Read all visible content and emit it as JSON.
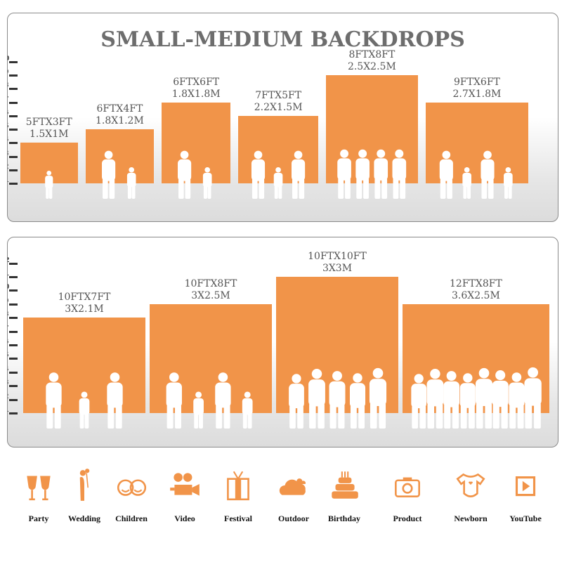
{
  "title": "SMALL-MEDIUM BACKDROPS",
  "accent_color": "#f19449",
  "panels": [
    {
      "ticks": [
        "1",
        "2",
        "3",
        "4",
        "5",
        "6",
        "7",
        "8",
        "9",
        "10"
      ],
      "backdrops": [
        {
          "ft": "5FTX3FT",
          "m": "1.5X1M",
          "width_ft": 5,
          "height_ft": 3,
          "people": 1
        },
        {
          "ft": "6FTX4FT",
          "m": "1.8X1.2M",
          "width_ft": 6,
          "height_ft": 4,
          "people": 2
        },
        {
          "ft": "6FTX6FT",
          "m": "1.8X1.8M",
          "width_ft": 6,
          "height_ft": 6,
          "people": 2
        },
        {
          "ft": "7FTX5FT",
          "m": "2.2X1.5M",
          "width_ft": 7,
          "height_ft": 5,
          "people": 3
        },
        {
          "ft": "8FTX8FT",
          "m": "2.5X2.5M",
          "width_ft": 8,
          "height_ft": 8,
          "people": 4
        },
        {
          "ft": "9FTX6FT",
          "m": "2.7X1.8M",
          "width_ft": 9,
          "height_ft": 6,
          "people": 4
        }
      ]
    },
    {
      "ticks": [
        "1",
        "2",
        "3",
        "4",
        "5",
        "6",
        "7",
        "8",
        "9",
        "10",
        "11",
        "12"
      ],
      "backdrops": [
        {
          "ft": "10FTX7FT",
          "m": "3X2.1M",
          "width_ft": 10,
          "height_ft": 7,
          "people": 3
        },
        {
          "ft": "10FTX8FT",
          "m": "3X2.5M",
          "width_ft": 10,
          "height_ft": 8,
          "people": 4
        },
        {
          "ft": "10FTX10FT",
          "m": "3X3M",
          "width_ft": 10,
          "height_ft": 10,
          "people": 5
        },
        {
          "ft": "12FTX8FT",
          "m": "3.6X2.5M",
          "width_ft": 12,
          "height_ft": 8,
          "people": 8
        }
      ]
    }
  ],
  "categories": [
    {
      "label": "Party",
      "icon": "wine-glasses-icon"
    },
    {
      "label": "Wedding",
      "icon": "wedding-couple-icon"
    },
    {
      "label": "Children",
      "icon": "children-faces-icon"
    },
    {
      "label": "Video",
      "icon": "video-camera-icon"
    },
    {
      "label": "Festival",
      "icon": "gift-box-icon"
    },
    {
      "label": "Outdoor",
      "icon": "cloud-icon"
    },
    {
      "label": "Birthday",
      "icon": "birthday-cake-icon"
    },
    {
      "label": "Product",
      "icon": "camera-icon"
    },
    {
      "label": "Newborn",
      "icon": "baby-onesie-icon"
    },
    {
      "label": "YouTube",
      "icon": "play-button-icon"
    }
  ]
}
